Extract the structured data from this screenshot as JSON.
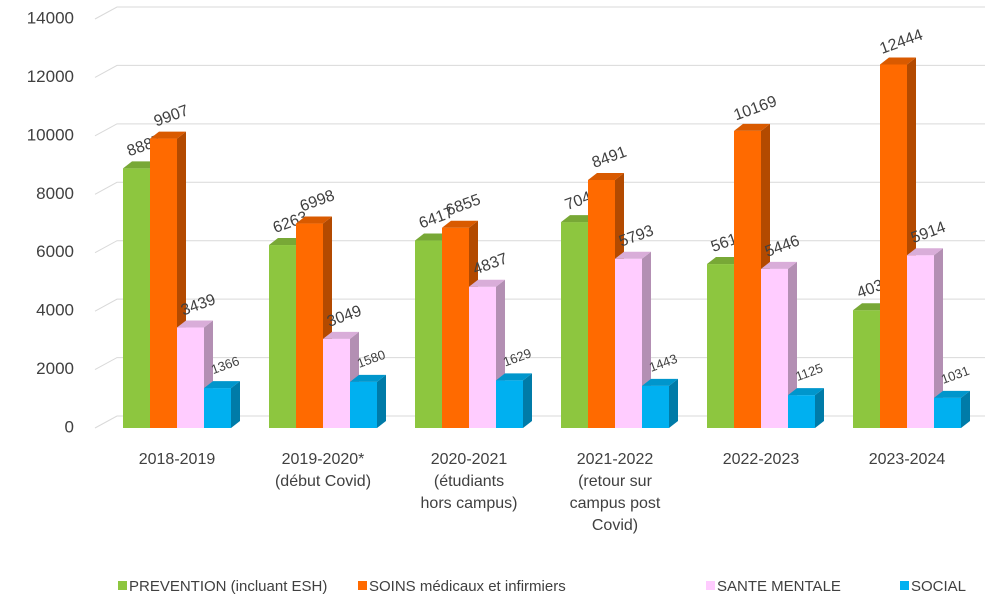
{
  "chart_data": {
    "type": "bar3d",
    "categories": [
      [
        "2018-2019"
      ],
      [
        "2019-2020*",
        "(début Covid)"
      ],
      [
        "2020-2021",
        "(étudiants",
        "hors campus)"
      ],
      [
        "2021-2022",
        "(retour sur",
        "campus post",
        "Covid)"
      ],
      [
        "2022-2023"
      ],
      [
        "2023-2024"
      ]
    ],
    "series": [
      {
        "name": "PREVENTION (incluant ESH)",
        "color": "#8dc63f",
        "values": [
          8887,
          6263,
          6417,
          7049,
          5612,
          4032
        ]
      },
      {
        "name": "SOINS médicaux et infirmiers",
        "color": "#ff6a00",
        "values": [
          9907,
          6998,
          6855,
          8491,
          10169,
          12444
        ]
      },
      {
        "name": "SANTE MENTALE",
        "color": "#ffccff",
        "values": [
          3439,
          3049,
          4837,
          5793,
          5446,
          5914
        ]
      },
      {
        "name": "SOCIAL",
        "color": "#00b0f0",
        "values": [
          1366,
          1580,
          1629,
          1443,
          1125,
          1031
        ]
      }
    ],
    "ylim": [
      0,
      14000
    ],
    "yticks": [
      0,
      2000,
      4000,
      6000,
      8000,
      10000,
      12000,
      14000
    ],
    "grid": true,
    "legend": "bottom"
  }
}
